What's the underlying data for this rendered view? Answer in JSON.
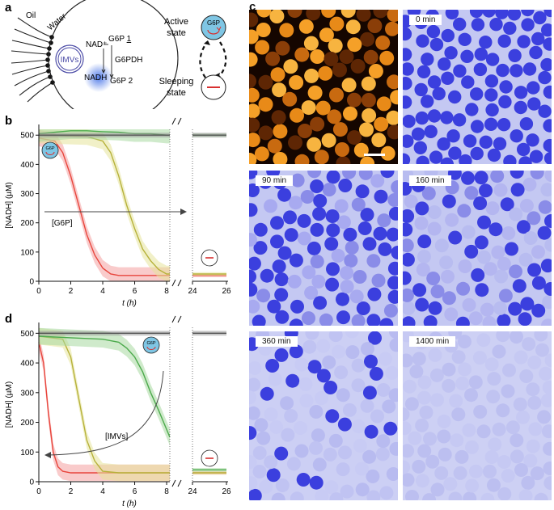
{
  "panels": {
    "a": "a",
    "b": "b",
    "c": "c",
    "d": "d"
  },
  "schematic": {
    "oil": "Oil",
    "water": "Water",
    "imvs": "IMVs",
    "nad": "NAD⁺",
    "g6p1_prefix": "G6P ",
    "g6p1_num": "1",
    "g6pdh": "G6PDH",
    "nadh": "NADH",
    "g6p2": "G6P 2",
    "active_line1": "Active",
    "active_line2": "state",
    "sleeping_line1": "Sleeping",
    "sleeping_line2": "state",
    "badge": "G6P"
  },
  "microscopy": {
    "tiles": [
      {
        "label": ""
      },
      {
        "label": "0 min"
      },
      {
        "label": "90 min"
      },
      {
        "label": "160 min"
      },
      {
        "label": "360 min"
      },
      {
        "label": "1400 min"
      }
    ]
  },
  "chart_data": [
    {
      "panel": "b",
      "type": "line",
      "xlabel": "t (h)",
      "ylabel": "[NADH] (µM)",
      "ylim": [
        0,
        520
      ],
      "xticks": [
        "0",
        "2",
        "4",
        "6",
        "8",
        "24",
        "26"
      ],
      "yticks": [
        "0",
        "100",
        "200",
        "300",
        "400",
        "500"
      ],
      "annotation": "[G6P]",
      "badge": "G6P",
      "series": [
        {
          "color": "#e8453c",
          "band": "#f4a0a0",
          "x": [
            0,
            1,
            1.5,
            2,
            2.5,
            3,
            3.5,
            4,
            4.5,
            5,
            6,
            7,
            8.2,
            24,
            26
          ],
          "y": [
            490,
            480,
            440,
            360,
            260,
            160,
            90,
            45,
            25,
            20,
            20,
            20,
            20,
            20,
            20
          ]
        },
        {
          "color": "#b6b13a",
          "band": "#e6e49a",
          "x": [
            0,
            3,
            4,
            4.5,
            5,
            5.5,
            6,
            6.5,
            7,
            7.5,
            8,
            8.2,
            24,
            26
          ],
          "y": [
            500,
            495,
            480,
            440,
            360,
            260,
            180,
            110,
            70,
            40,
            25,
            25,
            25,
            25
          ]
        },
        {
          "color": "#4caa4c",
          "band": "#a8d8a0",
          "x": [
            0,
            1,
            2,
            3,
            4,
            5,
            6,
            7,
            8,
            8.2,
            24,
            26
          ],
          "y": [
            505,
            510,
            515,
            515,
            512,
            510,
            505,
            505,
            500,
            500,
            500,
            500
          ]
        },
        {
          "color": "#555555",
          "band": "#999999",
          "x": [
            0,
            2,
            4,
            6,
            8.2,
            24,
            26
          ],
          "y": [
            500,
            500,
            500,
            500,
            500,
            500,
            500
          ]
        }
      ]
    },
    {
      "panel": "d",
      "type": "line",
      "xlabel": "t (h)",
      "ylabel": "[NADH] (µM)",
      "ylim": [
        0,
        520
      ],
      "xticks": [
        "0",
        "2",
        "4",
        "6",
        "8",
        "24",
        "26"
      ],
      "yticks": [
        "0",
        "100",
        "200",
        "300",
        "400",
        "500"
      ],
      "annotation": "[IMVs]",
      "badge": "G6P",
      "series": [
        {
          "color": "#e8453c",
          "band": "#f4a0a0",
          "x": [
            0,
            0.3,
            0.6,
            0.9,
            1.2,
            1.5,
            2,
            3,
            4,
            5,
            6,
            7,
            8.2,
            24,
            26
          ],
          "y": [
            470,
            400,
            230,
            100,
            50,
            35,
            30,
            30,
            30,
            30,
            30,
            30,
            30,
            30,
            30
          ]
        },
        {
          "color": "#b6b13a",
          "band": "#e6e49a",
          "x": [
            0,
            1.5,
            2,
            2.5,
            3,
            3.5,
            4,
            5,
            6,
            8.2,
            24,
            26
          ],
          "y": [
            490,
            480,
            420,
            280,
            140,
            70,
            35,
            30,
            30,
            30,
            30,
            30
          ]
        },
        {
          "color": "#4caa4c",
          "band": "#a8d8a0",
          "x": [
            0,
            2,
            4,
            5,
            5.5,
            6,
            6.5,
            7,
            7.5,
            8.2,
            24,
            26
          ],
          "y": [
            490,
            485,
            480,
            470,
            450,
            420,
            370,
            300,
            240,
            150,
            40,
            40
          ]
        },
        {
          "color": "#555555",
          "band": "#999999",
          "x": [
            0,
            2,
            4,
            6,
            8.2,
            24,
            26
          ],
          "y": [
            500,
            500,
            500,
            500,
            500,
            500,
            500
          ]
        }
      ]
    }
  ],
  "colors": {
    "orange_bg": "#150600",
    "orange_drop": "#f5a028",
    "blue_bg": "#c4c8f2",
    "blue_drop": "#3b3fde",
    "badge_fill": "#7fc6e4"
  }
}
